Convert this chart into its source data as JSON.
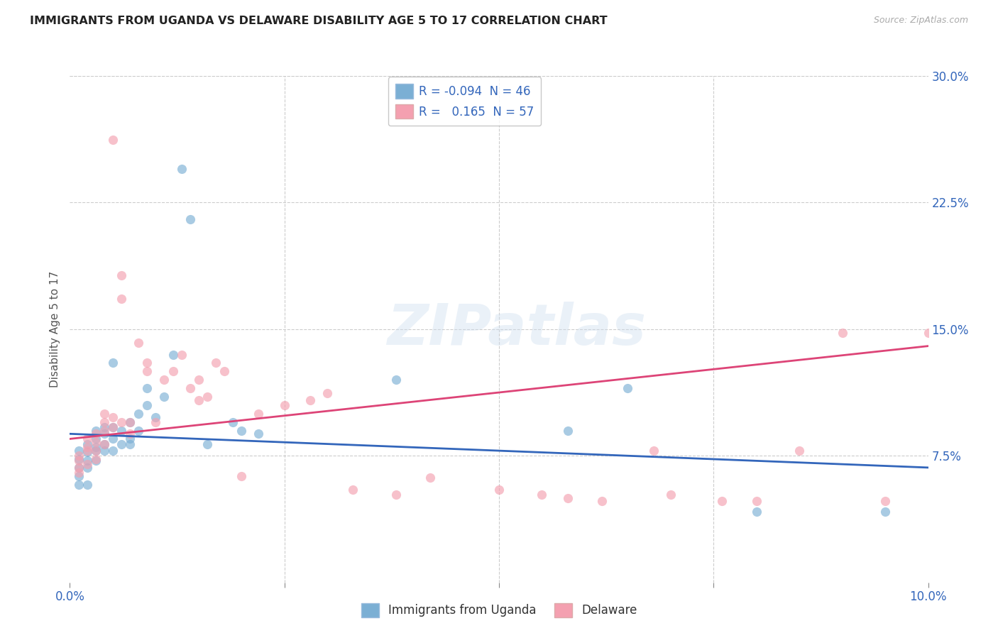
{
  "title": "IMMIGRANTS FROM UGANDA VS DELAWARE DISABILITY AGE 5 TO 17 CORRELATION CHART",
  "source": "Source: ZipAtlas.com",
  "ylabel": "Disability Age 5 to 17",
  "xlim": [
    0.0,
    0.1
  ],
  "ylim": [
    0.0,
    0.3
  ],
  "xticks": [
    0.0,
    0.025,
    0.05,
    0.075,
    0.1
  ],
  "xtick_labels": [
    "0.0%",
    "",
    "",
    "",
    "10.0%"
  ],
  "yticks_right": [
    0.075,
    0.15,
    0.225,
    0.3
  ],
  "ytick_labels_right": [
    "7.5%",
    "15.0%",
    "22.5%",
    "30.0%"
  ],
  "grid_color": "#cccccc",
  "background_color": "#ffffff",
  "blue_color": "#7bafd4",
  "pink_color": "#f4a0b0",
  "blue_line_color": "#3366bb",
  "pink_line_color": "#dd4477",
  "legend_R_blue": "-0.094",
  "legend_N_blue": "46",
  "legend_R_pink": "0.165",
  "legend_N_pink": "57",
  "legend_label_blue": "Immigrants from Uganda",
  "legend_label_pink": "Delaware",
  "watermark": "ZIPatlas",
  "blue_scatter_x": [
    0.001,
    0.001,
    0.001,
    0.001,
    0.001,
    0.002,
    0.002,
    0.002,
    0.002,
    0.002,
    0.003,
    0.003,
    0.003,
    0.003,
    0.003,
    0.004,
    0.004,
    0.004,
    0.004,
    0.005,
    0.005,
    0.005,
    0.005,
    0.006,
    0.006,
    0.007,
    0.007,
    0.007,
    0.008,
    0.008,
    0.009,
    0.009,
    0.01,
    0.011,
    0.012,
    0.013,
    0.014,
    0.016,
    0.019,
    0.02,
    0.022,
    0.038,
    0.058,
    0.065,
    0.08,
    0.095
  ],
  "blue_scatter_y": [
    0.068,
    0.073,
    0.078,
    0.063,
    0.058,
    0.072,
    0.077,
    0.068,
    0.082,
    0.058,
    0.078,
    0.085,
    0.09,
    0.08,
    0.072,
    0.088,
    0.082,
    0.092,
    0.078,
    0.13,
    0.085,
    0.092,
    0.078,
    0.09,
    0.082,
    0.095,
    0.085,
    0.082,
    0.1,
    0.09,
    0.115,
    0.105,
    0.098,
    0.11,
    0.135,
    0.245,
    0.215,
    0.082,
    0.095,
    0.09,
    0.088,
    0.12,
    0.09,
    0.115,
    0.042,
    0.042
  ],
  "pink_scatter_x": [
    0.001,
    0.001,
    0.001,
    0.001,
    0.002,
    0.002,
    0.002,
    0.002,
    0.003,
    0.003,
    0.003,
    0.003,
    0.004,
    0.004,
    0.004,
    0.004,
    0.005,
    0.005,
    0.005,
    0.006,
    0.006,
    0.006,
    0.007,
    0.007,
    0.008,
    0.009,
    0.009,
    0.01,
    0.011,
    0.012,
    0.013,
    0.014,
    0.015,
    0.015,
    0.016,
    0.017,
    0.018,
    0.02,
    0.022,
    0.025,
    0.028,
    0.03,
    0.033,
    0.038,
    0.042,
    0.05,
    0.055,
    0.058,
    0.062,
    0.068,
    0.07,
    0.076,
    0.08,
    0.085,
    0.09,
    0.095,
    0.1
  ],
  "pink_scatter_y": [
    0.068,
    0.075,
    0.072,
    0.065,
    0.078,
    0.085,
    0.08,
    0.07,
    0.088,
    0.083,
    0.078,
    0.073,
    0.1,
    0.095,
    0.09,
    0.082,
    0.262,
    0.098,
    0.092,
    0.182,
    0.168,
    0.095,
    0.095,
    0.088,
    0.142,
    0.13,
    0.125,
    0.095,
    0.12,
    0.125,
    0.135,
    0.115,
    0.12,
    0.108,
    0.11,
    0.13,
    0.125,
    0.063,
    0.1,
    0.105,
    0.108,
    0.112,
    0.055,
    0.052,
    0.062,
    0.055,
    0.052,
    0.05,
    0.048,
    0.078,
    0.052,
    0.048,
    0.048,
    0.078,
    0.148,
    0.048,
    0.148
  ]
}
